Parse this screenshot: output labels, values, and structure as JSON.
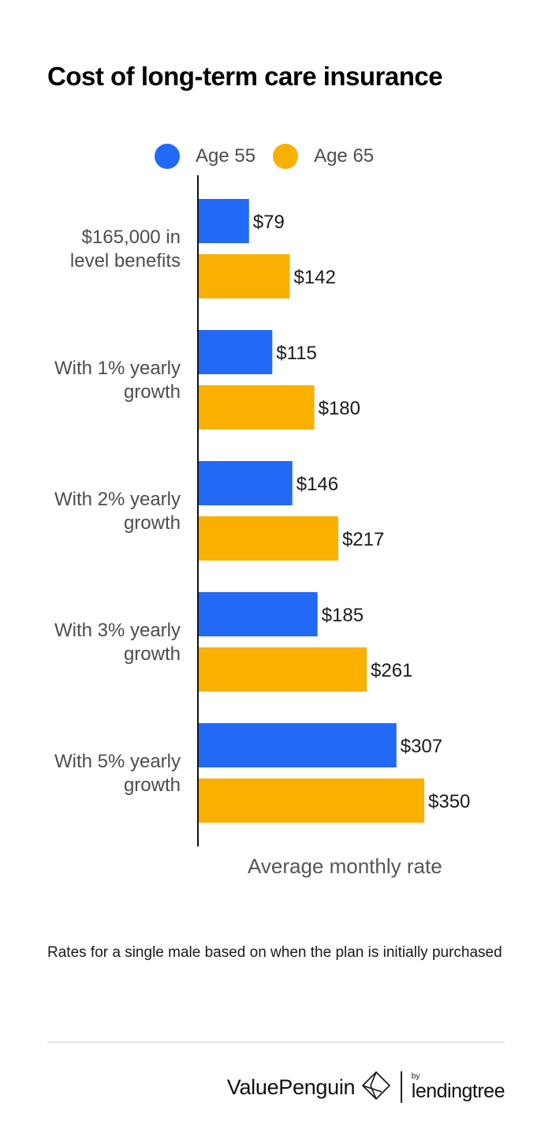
{
  "chart_data": {
    "type": "bar",
    "orientation": "horizontal",
    "title": "Cost of long-term care insurance",
    "categories": [
      "$165,000 in\nlevel benefits",
      "With 1% yearly\ngrowth",
      "With 2% yearly\ngrowth",
      "With 3% yearly\ngrowth",
      "With 5% yearly\ngrowth"
    ],
    "series": [
      {
        "name": "Age 55",
        "color": "#2269F5",
        "values": [
          79,
          115,
          146,
          185,
          307
        ],
        "labels": [
          "$79",
          "$115",
          "$146",
          "$185",
          "$307"
        ]
      },
      {
        "name": "Age 65",
        "color": "#F9B000",
        "values": [
          142,
          180,
          217,
          261,
          350
        ],
        "labels": [
          "$142",
          "$180",
          "$217",
          "$261",
          "$350"
        ]
      }
    ],
    "xlabel": "Average monthly rate",
    "ylabel": "",
    "xlim": [
      0,
      360
    ],
    "grid": false,
    "legend": "top"
  },
  "footnote": "Rates for a single male based on when the plan is initially purchased",
  "footer": {
    "brand": "ValuePenguin",
    "by": "by",
    "partner": "lendingtree"
  }
}
